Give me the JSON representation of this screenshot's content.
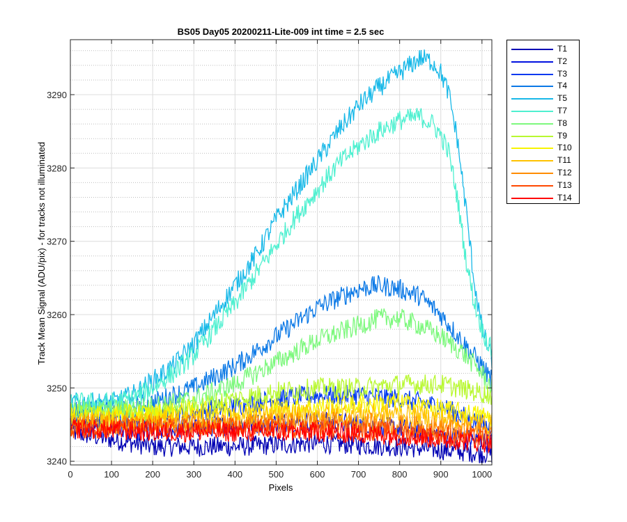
{
  "chart_data": {
    "type": "line",
    "title": "BS05 Day05 20200211-Lite-009 int time = 2.5 sec",
    "xlabel": "Pixels",
    "ylabel": "Track Mean Signal (ADU/pix) - for tracks not illuminated",
    "xlim": [
      0,
      1024
    ],
    "ylim": [
      3239.5,
      3297.5
    ],
    "xticks": [
      0,
      100,
      200,
      300,
      400,
      500,
      600,
      700,
      800,
      900,
      1000
    ],
    "yticks": [
      3240,
      3250,
      3260,
      3270,
      3280,
      3290
    ],
    "grid": "major and minor",
    "legend_position": "outside-top-right",
    "series": [
      {
        "name": "T1",
        "color": "#0000b4",
        "x": [
          0,
          200,
          400,
          600,
          800,
          1024
        ],
        "values": [
          3244,
          3242,
          3242,
          3242.5,
          3242,
          3241
        ]
      },
      {
        "name": "T2",
        "color": "#0010e0",
        "x": [
          0,
          200,
          400,
          600,
          800,
          1024
        ],
        "values": [
          3245,
          3244,
          3245,
          3245.5,
          3244.5,
          3242.5
        ]
      },
      {
        "name": "T3",
        "color": "#0038f0",
        "x": [
          0,
          200,
          400,
          500,
          600,
          700,
          800,
          900,
          1024
        ],
        "values": [
          3246,
          3246,
          3247.5,
          3248.5,
          3249,
          3249,
          3248.5,
          3247.5,
          3244.5
        ]
      },
      {
        "name": "T4",
        "color": "#0a78e6",
        "x": [
          0,
          100,
          200,
          300,
          400,
          500,
          600,
          700,
          750,
          800,
          850,
          900,
          950,
          1000,
          1024
        ],
        "values": [
          3247,
          3247,
          3248,
          3250,
          3253,
          3257,
          3261,
          3263.5,
          3264,
          3263.5,
          3262.5,
          3260,
          3256.5,
          3253,
          3251
        ]
      },
      {
        "name": "T5",
        "color": "#17b8e8",
        "x": [
          0,
          100,
          150,
          200,
          250,
          300,
          350,
          400,
          450,
          500,
          550,
          600,
          650,
          700,
          750,
          800,
          850,
          880,
          900,
          920,
          940,
          960,
          980,
          1000,
          1024
        ],
        "values": [
          3248,
          3248,
          3249,
          3251,
          3253,
          3256,
          3260,
          3264,
          3268,
          3273,
          3277,
          3281,
          3285,
          3288.5,
          3291,
          3293,
          3295,
          3294.5,
          3293,
          3290,
          3284,
          3275,
          3265,
          3258,
          3254
        ]
      },
      {
        "name": "T7",
        "color": "#4ef0d0",
        "x": [
          0,
          100,
          150,
          200,
          250,
          300,
          350,
          400,
          450,
          500,
          550,
          600,
          650,
          700,
          750,
          800,
          850,
          880,
          900,
          920,
          940,
          960,
          980,
          1000,
          1024
        ],
        "values": [
          3248,
          3248,
          3248.5,
          3250,
          3252,
          3254.5,
          3258,
          3261.5,
          3265.5,
          3269.5,
          3273.5,
          3277,
          3280.5,
          3283,
          3285,
          3286.5,
          3287,
          3286,
          3284.5,
          3282,
          3276,
          3268,
          3262,
          3258,
          3255
        ]
      },
      {
        "name": "T8",
        "color": "#7cf87c",
        "x": [
          0,
          100,
          200,
          300,
          400,
          500,
          600,
          700,
          750,
          800,
          850,
          900,
          950,
          1000,
          1024
        ],
        "values": [
          3247,
          3247,
          3247.5,
          3248.5,
          3250.5,
          3253.5,
          3256.5,
          3258.5,
          3259.5,
          3259.5,
          3258.5,
          3257,
          3255,
          3252,
          3250
        ]
      },
      {
        "name": "T9",
        "color": "#b8f830",
        "x": [
          0,
          200,
          400,
          500,
          600,
          700,
          800,
          900,
          1024
        ],
        "values": [
          3246.5,
          3246.5,
          3248.5,
          3249.5,
          3250,
          3250,
          3250.5,
          3250.5,
          3249
        ]
      },
      {
        "name": "T10",
        "color": "#f8f400",
        "x": [
          0,
          200,
          400,
          600,
          800,
          1024
        ],
        "values": [
          3246,
          3246.5,
          3247,
          3247.5,
          3248,
          3246
        ]
      },
      {
        "name": "T11",
        "color": "#ffc200",
        "x": [
          0,
          200,
          400,
          600,
          800,
          1024
        ],
        "values": [
          3245.5,
          3245.5,
          3246,
          3246.5,
          3246.5,
          3245
        ]
      },
      {
        "name": "T12",
        "color": "#ff8c00",
        "x": [
          0,
          200,
          400,
          600,
          800,
          1024
        ],
        "values": [
          3245,
          3245,
          3245,
          3245.5,
          3245,
          3244
        ]
      },
      {
        "name": "T13",
        "color": "#ff4800",
        "x": [
          0,
          200,
          400,
          600,
          800,
          1024
        ],
        "values": [
          3244.5,
          3244.5,
          3244.5,
          3244.5,
          3244,
          3243
        ]
      },
      {
        "name": "T14",
        "color": "#ff0000",
        "x": [
          0,
          200,
          400,
          600,
          800,
          1024
        ],
        "values": [
          3244.5,
          3244,
          3244,
          3244,
          3243.5,
          3242.5
        ]
      }
    ]
  }
}
